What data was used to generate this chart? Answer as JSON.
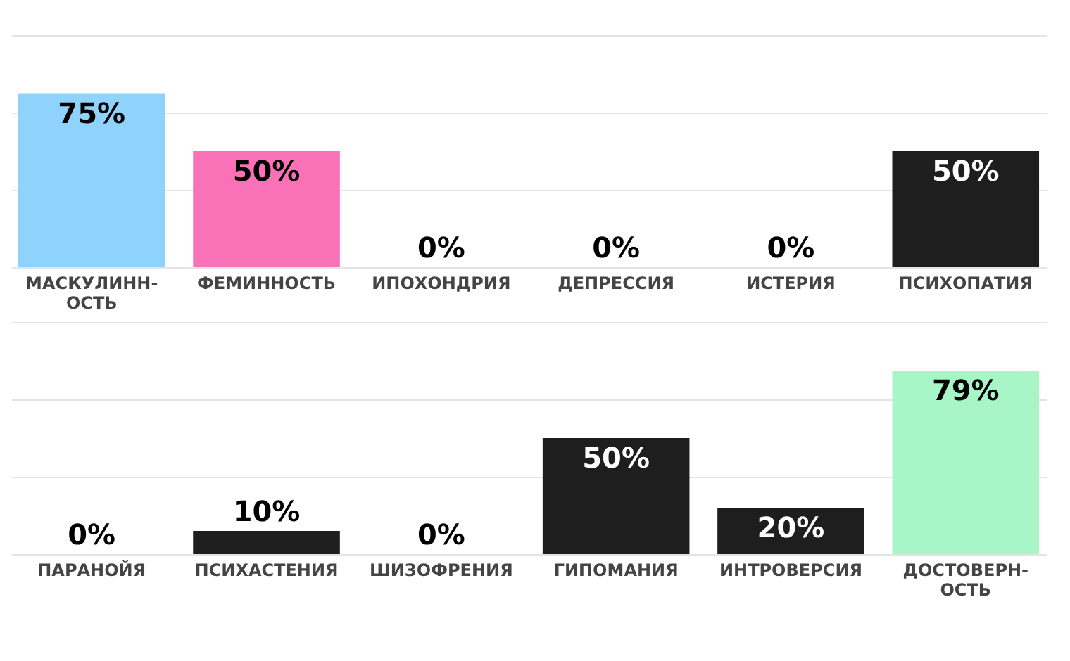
{
  "chart_data": [
    {
      "type": "bar",
      "categories": [
        "МАСКУЛИНН-ОСТЬ",
        "ФЕМИННОСТЬ",
        "ИПОХОНДРИЯ",
        "ДЕПРЕССИЯ",
        "ИСТЕРИЯ",
        "ПСИХОПАТИЯ"
      ],
      "values": [
        75,
        50,
        0,
        0,
        0,
        50
      ],
      "colors": [
        "#8fd3fc",
        "#f971b6",
        "#1e1e1e",
        "#1e1e1e",
        "#1e1e1e",
        "#1e1e1e"
      ],
      "value_labels": [
        "75%",
        "50%",
        "0%",
        "0%",
        "0%",
        "50%"
      ],
      "ylim": [
        0,
        100
      ],
      "yticks": [
        {
          "value": 0,
          "label": null
        },
        {
          "value": 33.3,
          "label": null
        },
        {
          "value": 66.7,
          "label": null
        },
        {
          "value": 100,
          "label": null
        }
      ],
      "grid": "y",
      "tick_labels": "x"
    },
    {
      "type": "bar",
      "categories": [
        "ПАРАНОЙЯ",
        "ПСИХАСТЕНИЯ",
        "ШИЗОФРЕНИЯ",
        "ГИПОМАНИЯ",
        "ИНТРОВЕРСИЯ",
        "ДОСТОВЕРН-ОСТЬ"
      ],
      "values": [
        0,
        10,
        0,
        50,
        20,
        79
      ],
      "colors": [
        "#1e1e1e",
        "#1e1e1e",
        "#1e1e1e",
        "#1e1e1e",
        "#1e1e1e",
        "#a8f5c8"
      ],
      "value_labels": [
        "0%",
        "10%",
        "0%",
        "50%",
        "20%",
        "79%"
      ],
      "ylim": [
        0,
        100
      ],
      "yticks": [
        {
          "value": 0,
          "label": null
        },
        {
          "value": 33.3,
          "label": null
        },
        {
          "value": 66.7,
          "label": null
        },
        {
          "value": 100,
          "label": null
        }
      ],
      "grid": "y",
      "tick_labels": "x"
    }
  ]
}
